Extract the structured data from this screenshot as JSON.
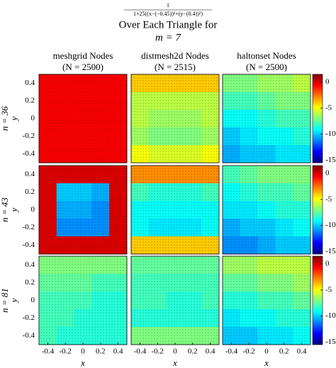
{
  "chart_data": {
    "type": "heatmap",
    "title_numerator": "1",
    "title_denominator": "1+25((x−(−0.45))²+(y−(0.4))²)",
    "title_line": "Over Each Triangle for",
    "title_param": "m = 7",
    "columns": [
      {
        "title": "meshgrid Nodes",
        "subtitle": "(N = 2500)"
      },
      {
        "title": "distmesh2d Nodes",
        "subtitle": "(N = 2515)"
      },
      {
        "title": "haltonset Nodes",
        "subtitle": "(N = 2500)"
      }
    ],
    "rows": [
      {
        "label": "n = 36"
      },
      {
        "label": "n = 43"
      },
      {
        "label": "n = 81"
      }
    ],
    "xlabel": "x",
    "ylabel": "y",
    "xlim": [
      -0.5,
      0.5
    ],
    "ylim": [
      -0.5,
      0.5
    ],
    "xticks": [
      -0.4,
      -0.2,
      0,
      0.2,
      0.4
    ],
    "yticks": [
      -0.4,
      -0.2,
      0,
      0.2,
      0.4
    ],
    "colorbar": {
      "lim": [
        -15.5,
        1.5
      ],
      "ticks": [
        0,
        -5,
        -10,
        -15
      ]
    },
    "panels": [
      [
        {
          "z": [
            [
              -0.5,
              -0.5,
              -0.5,
              -0.5,
              -0.5
            ],
            [
              -0.5,
              -0.5,
              -0.5,
              -0.5,
              -0.5
            ],
            [
              -0.5,
              -0.5,
              -0.5,
              -0.5,
              -0.5
            ],
            [
              -0.5,
              -0.5,
              -0.5,
              -0.5,
              -0.5
            ],
            [
              -0.5,
              -0.5,
              -0.5,
              -0.5,
              -0.5
            ]
          ]
        },
        {
          "z": [
            [
              -4,
              -4,
              -4,
              -4,
              -4
            ],
            [
              -6,
              -6,
              -6,
              -6,
              -6
            ],
            [
              -6,
              -6.5,
              -6.5,
              -6.5,
              -6
            ],
            [
              -6.5,
              -7,
              -7,
              -7,
              -6.5
            ],
            [
              -5,
              -5.5,
              -5.5,
              -5.5,
              -5
            ]
          ]
        },
        {
          "z": [
            [
              -7,
              -7,
              -6.5,
              -6.5,
              -6
            ],
            [
              -8,
              -8,
              -7.5,
              -7,
              -7
            ],
            [
              -9,
              -9,
              -8.5,
              -8,
              -8
            ],
            [
              -10,
              -9.5,
              -9,
              -9,
              -8.5
            ],
            [
              -10.5,
              -10,
              -10,
              -9.5,
              -9.5
            ]
          ]
        }
      ],
      [
        {
          "z": [
            [
              0,
              0,
              0,
              0,
              0
            ],
            [
              0,
              -10,
              -10,
              -10.5,
              0
            ],
            [
              0,
              -10.5,
              -10.5,
              -11,
              0
            ],
            [
              0,
              -11,
              -11,
              -11,
              0
            ],
            [
              0,
              0,
              0,
              0,
              0
            ]
          ]
        },
        {
          "z": [
            [
              -3,
              -3,
              -3,
              -3,
              -3
            ],
            [
              -8,
              -8.5,
              -8.5,
              -8.5,
              -8
            ],
            [
              -9,
              -9,
              -9,
              -9,
              -9
            ],
            [
              -9,
              -9.5,
              -9.5,
              -9.5,
              -9
            ],
            [
              -4,
              -4,
              -4,
              -4,
              -4
            ]
          ]
        },
        {
          "z": [
            [
              -8,
              -7.5,
              -7,
              -7,
              -7
            ],
            [
              -9,
              -8.5,
              -8,
              -8,
              -7.5
            ],
            [
              -9.5,
              -9.5,
              -9,
              -8.5,
              -8.5
            ],
            [
              -10.5,
              -10,
              -10,
              -9.5,
              -9
            ],
            [
              -11,
              -11,
              -10.5,
              -10,
              -10
            ]
          ]
        }
      ],
      [
        {
          "z": [
            [
              -7,
              -7,
              -7,
              -7,
              -7
            ],
            [
              -7.5,
              -7.5,
              -7.5,
              -8,
              -8
            ],
            [
              -8,
              -8,
              -8,
              -8.5,
              -8.5
            ],
            [
              -8,
              -8,
              -8.5,
              -8.5,
              -8.5
            ],
            [
              -8,
              -8.5,
              -8.5,
              -8.5,
              -8.5
            ]
          ]
        },
        {
          "z": [
            [
              -7.5,
              -7.5,
              -7.5,
              -7.5,
              -7.5
            ],
            [
              -8,
              -8,
              -8,
              -8,
              -8
            ],
            [
              -8,
              -8,
              -8.5,
              -8.5,
              -8
            ],
            [
              -8.5,
              -8.5,
              -8.5,
              -8.5,
              -8.5
            ],
            [
              -7,
              -7,
              -7,
              -7,
              -7
            ]
          ]
        },
        {
          "z": [
            [
              -6.5,
              -6.5,
              -6,
              -6,
              -6
            ],
            [
              -7.5,
              -7.5,
              -7,
              -7,
              -6.5
            ],
            [
              -8.5,
              -8.5,
              -8,
              -8,
              -7.5
            ],
            [
              -9.5,
              -9,
              -9,
              -8.5,
              -8.5
            ],
            [
              -10,
              -10,
              -9.5,
              -9.5,
              -9
            ]
          ]
        }
      ]
    ]
  }
}
